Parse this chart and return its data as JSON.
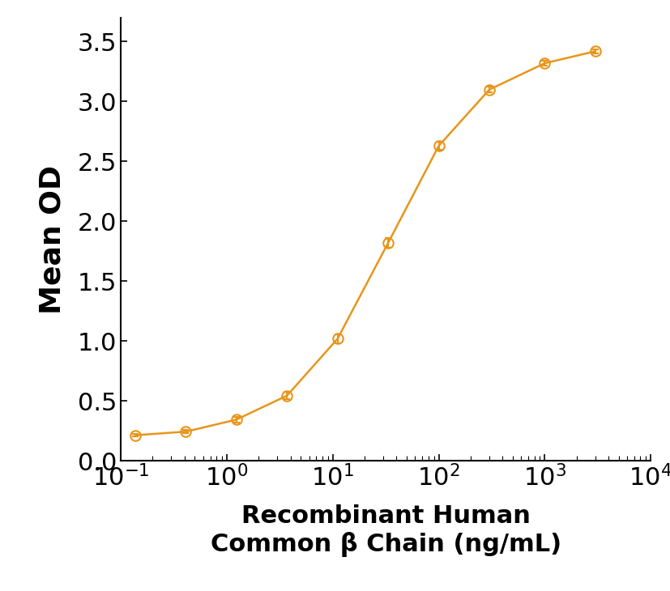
{
  "x_data": [
    0.137,
    0.411,
    1.23,
    3.7,
    11.1,
    33.3,
    100,
    300,
    1000,
    3000
  ],
  "y_data": [
    0.215,
    0.245,
    0.345,
    0.545,
    1.02,
    1.82,
    2.63,
    3.1,
    3.32,
    3.42
  ],
  "y_err": [
    0.01,
    0.015,
    0.025,
    0.03,
    0.04,
    0.04,
    0.035,
    0.025,
    0.02,
    0.015
  ],
  "line_color": "#E8951A",
  "marker_color": "#E8951A",
  "ylabel": "Mean OD",
  "xlabel_line1": "Recombinant Human",
  "xlabel_line2": "Common β Chain (ng/mL)",
  "ylim": [
    0.0,
    3.7
  ],
  "yticks": [
    0.0,
    0.5,
    1.0,
    1.5,
    2.0,
    2.5,
    3.0,
    3.5
  ],
  "xlog_min": -1,
  "xlog_max": 4,
  "background_color": "#ffffff",
  "ylabel_fontsize": 26,
  "xlabel_fontsize": 22,
  "tick_fontsize": 22
}
